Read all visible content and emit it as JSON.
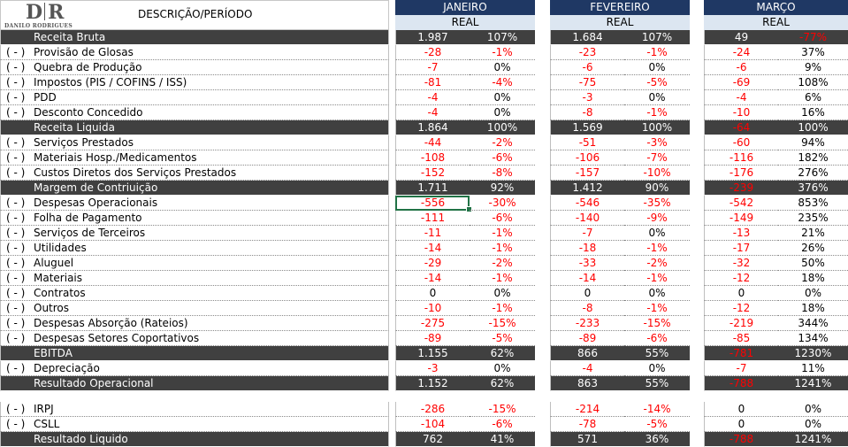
{
  "header": {
    "logo_mark_left": "D",
    "logo_mark_right": "R",
    "logo_name": "DANILO RODRIGUES",
    "title": "DESCRIÇÃO/PERÍODO"
  },
  "months": [
    {
      "name": "JANEIRO",
      "sub": "REAL"
    },
    {
      "name": "FEVEREIRO",
      "sub": "REAL"
    },
    {
      "name": "MARÇO",
      "sub": "REAL"
    }
  ],
  "rows": [
    {
      "paren": "",
      "label": "Receita Bruta",
      "total": true,
      "values": [
        [
          "1.987",
          "107%"
        ],
        [
          "1.684",
          "107%"
        ],
        [
          "49",
          "-77%"
        ]
      ]
    },
    {
      "paren": "( - )",
      "label": "Provisão de Glosas",
      "values": [
        [
          "-28",
          "-1%"
        ],
        [
          "-23",
          "-1%"
        ],
        [
          "-24",
          "37%"
        ]
      ]
    },
    {
      "paren": "( - )",
      "label": "Quebra de Produção",
      "values": [
        [
          "-7",
          "0%"
        ],
        [
          "-6",
          "0%"
        ],
        [
          "-6",
          "9%"
        ]
      ]
    },
    {
      "paren": "( - )",
      "label": "Impostos (PIS / COFINS / ISS)",
      "values": [
        [
          "-81",
          "-4%"
        ],
        [
          "-75",
          "-5%"
        ],
        [
          "-69",
          "108%"
        ]
      ]
    },
    {
      "paren": "( - )",
      "label": "PDD",
      "values": [
        [
          "-4",
          "0%"
        ],
        [
          "-3",
          "0%"
        ],
        [
          "-4",
          "6%"
        ]
      ]
    },
    {
      "paren": "( - )",
      "label": "Desconto Concedido",
      "values": [
        [
          "-4",
          "0%"
        ],
        [
          "-8",
          "-1%"
        ],
        [
          "-10",
          "16%"
        ]
      ]
    },
    {
      "paren": "",
      "label": "Receita Liquida",
      "total": true,
      "values": [
        [
          "1.864",
          "100%"
        ],
        [
          "1.569",
          "100%"
        ],
        [
          "-64",
          "100%"
        ]
      ]
    },
    {
      "paren": "( - )",
      "label": "Serviços Prestados",
      "values": [
        [
          "-44",
          "-2%"
        ],
        [
          "-51",
          "-3%"
        ],
        [
          "-60",
          "94%"
        ]
      ]
    },
    {
      "paren": "( - )",
      "label": "Materiais Hosp./Medicamentos",
      "values": [
        [
          "-108",
          "-6%"
        ],
        [
          "-106",
          "-7%"
        ],
        [
          "-116",
          "182%"
        ]
      ]
    },
    {
      "paren": "( - )",
      "label": "Custos Diretos dos Serviços Prestados",
      "values": [
        [
          "-152",
          "-8%"
        ],
        [
          "-157",
          "-10%"
        ],
        [
          "-176",
          "276%"
        ]
      ]
    },
    {
      "paren": "",
      "label": "Margem de Contriuição",
      "total": true,
      "values": [
        [
          "1.711",
          "92%"
        ],
        [
          "1.412",
          "90%"
        ],
        [
          "-239",
          "376%"
        ]
      ]
    },
    {
      "paren": "( - )",
      "label": "Despesas Operacionais",
      "values": [
        [
          "-556",
          "-30%"
        ],
        [
          "-546",
          "-35%"
        ],
        [
          "-542",
          "853%"
        ]
      ]
    },
    {
      "paren": "( - )",
      "label": "Folha de Pagamento",
      "values": [
        [
          "-111",
          "-6%"
        ],
        [
          "-140",
          "-9%"
        ],
        [
          "-149",
          "235%"
        ]
      ]
    },
    {
      "paren": "( - )",
      "label": "Serviços de Terceiros",
      "values": [
        [
          "-11",
          "-1%"
        ],
        [
          "-7",
          "0%"
        ],
        [
          "-13",
          "21%"
        ]
      ]
    },
    {
      "paren": "( - )",
      "label": "Utilidades",
      "values": [
        [
          "-14",
          "-1%"
        ],
        [
          "-18",
          "-1%"
        ],
        [
          "-17",
          "26%"
        ]
      ]
    },
    {
      "paren": "( - )",
      "label": "Aluguel",
      "values": [
        [
          "-29",
          "-2%"
        ],
        [
          "-33",
          "-2%"
        ],
        [
          "-32",
          "50%"
        ]
      ]
    },
    {
      "paren": "( - )",
      "label": "Materiais",
      "values": [
        [
          "-14",
          "-1%"
        ],
        [
          "-14",
          "-1%"
        ],
        [
          "-12",
          "18%"
        ]
      ]
    },
    {
      "paren": "( - )",
      "label": "Contratos",
      "values": [
        [
          "0",
          "0%"
        ],
        [
          "0",
          "0%"
        ],
        [
          "0",
          "0%"
        ]
      ]
    },
    {
      "paren": "( - )",
      "label": "Outros",
      "values": [
        [
          "-10",
          "-1%"
        ],
        [
          "-8",
          "-1%"
        ],
        [
          "-12",
          "18%"
        ]
      ]
    },
    {
      "paren": "( - )",
      "label": "Despesas Absorção (Rateios)",
      "values": [
        [
          "-275",
          "-15%"
        ],
        [
          "-233",
          "-15%"
        ],
        [
          "-219",
          "344%"
        ]
      ]
    },
    {
      "paren": "( - )",
      "label": "Despesas Setores Coportativos",
      "values": [
        [
          "-89",
          "-5%"
        ],
        [
          "-89",
          "-6%"
        ],
        [
          "-85",
          "134%"
        ]
      ]
    },
    {
      "paren": "",
      "label": "EBITDA",
      "total": true,
      "values": [
        [
          "1.155",
          "62%"
        ],
        [
          "866",
          "55%"
        ],
        [
          "-781",
          "1230%"
        ]
      ]
    },
    {
      "paren": "( - )",
      "label": "Depreciação",
      "values": [
        [
          "-3",
          "0%"
        ],
        [
          "-4",
          "0%"
        ],
        [
          "-7",
          "11%"
        ]
      ]
    },
    {
      "paren": "",
      "label": "Resultado Operacional",
      "total": true,
      "values": [
        [
          "1.152",
          "62%"
        ],
        [
          "863",
          "55%"
        ],
        [
          "-788",
          "1241%"
        ]
      ]
    },
    {
      "paren": "( - )",
      "label": "IRPJ",
      "gap": true,
      "values": [
        [
          "-286",
          "-15%"
        ],
        [
          "-214",
          "-14%"
        ],
        [
          "0",
          "0%"
        ]
      ]
    },
    {
      "paren": "( - )",
      "label": "CSLL",
      "values": [
        [
          "-104",
          "-6%"
        ],
        [
          "-78",
          "-5%"
        ],
        [
          "0",
          "0%"
        ]
      ]
    },
    {
      "paren": "",
      "label": "Resultado Liquido",
      "total": true,
      "values": [
        [
          "762",
          "41%"
        ],
        [
          "571",
          "36%"
        ],
        [
          "-788",
          "1241%"
        ]
      ]
    }
  ],
  "selected_cell": {
    "row": 11,
    "month": 0,
    "col": 0
  }
}
